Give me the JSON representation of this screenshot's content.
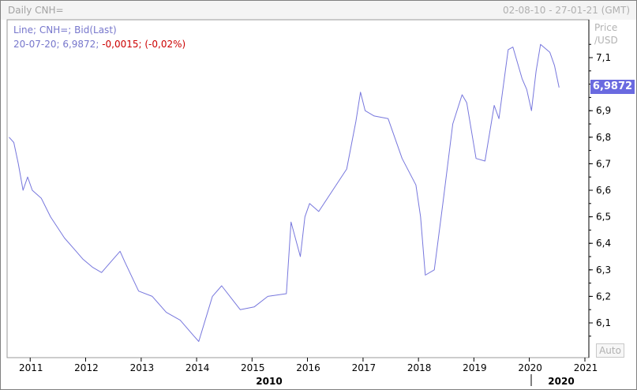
{
  "window": {
    "title": "Daily CNH=",
    "date_range": "02-08-10 - 27-01-21 (GMT)"
  },
  "legend": {
    "line1": "Line; CNH=; Bid(Last)",
    "line2_date_value": "20-07-20; 6,9872;",
    "line2_change": "-0,0015; (-0,02%)"
  },
  "y_axis": {
    "label_line1": "Price",
    "label_line2": "/USD"
  },
  "last_price_badge": "6,9872",
  "auto_button": "Auto",
  "colors": {
    "series": "#7777dd",
    "badge": "#6a6ae0",
    "negative": "#cc0000"
  },
  "chart_data": {
    "type": "line",
    "series": [
      {
        "name": "CNH=",
        "x": [
          "2010-08",
          "2010-09",
          "2010-10",
          "2010-11",
          "2010-12",
          "2011-01",
          "2011-03",
          "2011-05",
          "2011-08",
          "2011-10",
          "2011-12",
          "2012-02",
          "2012-04",
          "2012-06",
          "2012-08",
          "2012-09",
          "2012-12",
          "2013-03",
          "2013-06",
          "2013-09",
          "2013-12",
          "2014-01",
          "2014-04",
          "2014-06",
          "2014-10",
          "2015-01",
          "2015-04",
          "2015-08",
          "2015-09",
          "2015-11",
          "2015-12",
          "2016-01",
          "2016-03",
          "2016-06",
          "2016-09",
          "2016-11",
          "2016-12",
          "2017-01",
          "2017-03",
          "2017-06",
          "2017-09",
          "2017-12",
          "2018-01",
          "2018-02",
          "2018-04",
          "2018-06",
          "2018-08",
          "2018-10",
          "2018-11",
          "2019-01",
          "2019-03",
          "2019-05",
          "2019-06",
          "2019-08",
          "2019-09",
          "2019-11",
          "2019-12",
          "2020-01",
          "2020-02",
          "2020-03",
          "2020-05",
          "2020-06",
          "2020-07"
        ],
        "y": [
          6.8,
          6.78,
          6.7,
          6.6,
          6.65,
          6.6,
          6.57,
          6.5,
          6.42,
          6.38,
          6.34,
          6.31,
          6.29,
          6.33,
          6.37,
          6.33,
          6.22,
          6.2,
          6.14,
          6.11,
          6.05,
          6.03,
          6.2,
          6.24,
          6.15,
          6.16,
          6.2,
          6.21,
          6.48,
          6.35,
          6.5,
          6.55,
          6.52,
          6.6,
          6.68,
          6.86,
          6.97,
          6.9,
          6.88,
          6.87,
          6.72,
          6.62,
          6.5,
          6.28,
          6.3,
          6.57,
          6.85,
          6.96,
          6.93,
          6.72,
          6.71,
          6.92,
          6.87,
          7.13,
          7.14,
          7.02,
          6.98,
          6.9,
          7.05,
          7.15,
          7.12,
          7.07,
          6.9872
        ]
      }
    ],
    "x_ticks": [
      "2011",
      "2012",
      "2013",
      "2014",
      "2015",
      "2016",
      "2017",
      "2018",
      "2019",
      "2020",
      "2021"
    ],
    "y_ticks": [
      "6,1",
      "6,2",
      "6,3",
      "6,4",
      "6,5",
      "6,6",
      "6,7",
      "6,8",
      "6,9",
      "7,1"
    ],
    "era_labels": [
      "2010",
      "2020"
    ],
    "ylim": [
      6.0,
      7.2
    ],
    "x_range": [
      "2010-08",
      "2021-01"
    ],
    "ylabel": "Price /USD",
    "grid": false,
    "legend_placement": "top-left"
  }
}
